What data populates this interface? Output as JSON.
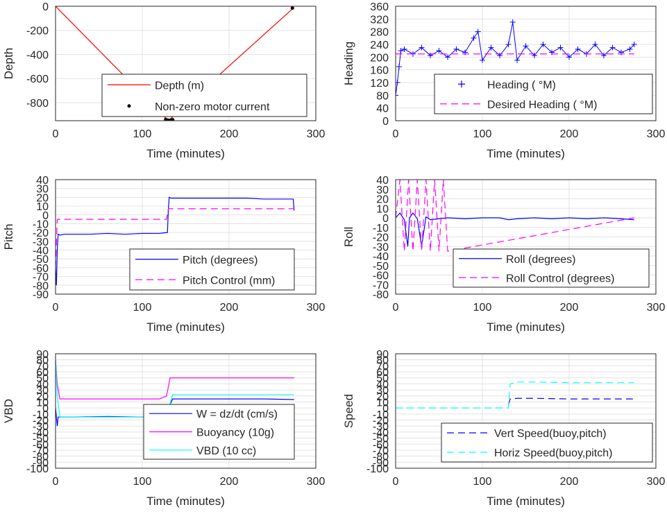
{
  "chart_data": [
    {
      "type": "line",
      "xlabel": "Time (minutes)",
      "ylabel": "Depth",
      "xlim": [
        0,
        300
      ],
      "ylim": [
        -950,
        0
      ],
      "xticks": [
        0,
        100,
        200,
        300
      ],
      "yticks": [
        0,
        -200,
        -400,
        -600,
        -800
      ],
      "grid": true,
      "legend_position": "bottom-right",
      "legend": [
        {
          "label": "Depth (m)",
          "style": "solid",
          "color": "#ff0000"
        },
        {
          "label": "Non-zero motor current",
          "style": "dot",
          "color": "#000000"
        }
      ],
      "series": [
        {
          "name": "Depth (m)",
          "color": "#ff0000",
          "style": "solid",
          "x": [
            0,
            130,
            275
          ],
          "y": [
            0,
            -950,
            -10
          ]
        },
        {
          "name": "Non-zero motor current",
          "color": "#000000",
          "style": "dot",
          "x": [
            127,
            129,
            131,
            133,
            135,
            273
          ],
          "y": [
            -940,
            -945,
            -948,
            -946,
            -942,
            -15
          ]
        }
      ]
    },
    {
      "type": "line",
      "xlabel": "Time (minutes)",
      "ylabel": "Heading",
      "xlim": [
        0,
        300
      ],
      "ylim": [
        0,
        360
      ],
      "xticks": [
        0,
        100,
        200,
        300
      ],
      "yticks": [
        0,
        40,
        80,
        120,
        160,
        200,
        240,
        280,
        320,
        360
      ],
      "grid": true,
      "legend_position": "bottom-right",
      "legend": [
        {
          "label": "Heading ( °M)",
          "style": "plus",
          "color": "#0000ff"
        },
        {
          "label": "Desired Heading ( °M)",
          "style": "dashed",
          "color": "#ff00ff"
        }
      ],
      "series": [
        {
          "name": "Heading ( °M)",
          "color": "#0000ff",
          "style": "plus",
          "x": [
            0,
            2,
            4,
            6,
            10,
            20,
            30,
            40,
            50,
            60,
            70,
            80,
            90,
            95,
            100,
            110,
            120,
            130,
            135,
            140,
            150,
            160,
            170,
            180,
            190,
            200,
            210,
            220,
            230,
            240,
            250,
            260,
            270,
            275
          ],
          "y": [
            80,
            120,
            170,
            220,
            225,
            210,
            230,
            205,
            220,
            200,
            225,
            215,
            260,
            280,
            190,
            230,
            205,
            240,
            310,
            190,
            235,
            205,
            240,
            215,
            230,
            200,
            225,
            210,
            240,
            205,
            230,
            215,
            225,
            240
          ]
        },
        {
          "name": "Desired Heading ( °M)",
          "color": "#ff00ff",
          "style": "dashed",
          "x": [
            0,
            275
          ],
          "y": [
            210,
            210
          ]
        }
      ]
    },
    {
      "type": "line",
      "xlabel": "Time (minutes)",
      "ylabel": "Pitch",
      "xlim": [
        0,
        300
      ],
      "ylim": [
        -90,
        40
      ],
      "xticks": [
        0,
        100,
        200,
        300
      ],
      "yticks": [
        40,
        30,
        20,
        10,
        0,
        -10,
        -20,
        -30,
        -40,
        -50,
        -60,
        -70,
        -80,
        -90
      ],
      "grid": true,
      "legend_position": "bottom-right",
      "legend": [
        {
          "label": "Pitch (degrees)",
          "style": "solid",
          "color": "#0000ff"
        },
        {
          "label": "Pitch Control (mm)",
          "style": "dashed",
          "color": "#ff00ff"
        }
      ],
      "series": [
        {
          "name": "Pitch (degrees)",
          "color": "#0000ff",
          "style": "solid",
          "x": [
            0,
            1,
            2,
            3,
            5,
            10,
            20,
            40,
            60,
            80,
            100,
            120,
            129,
            130,
            131,
            133,
            140,
            160,
            180,
            200,
            220,
            240,
            260,
            274,
            275
          ],
          "y": [
            -60,
            -80,
            -40,
            -22,
            -23,
            -22,
            -22,
            -22,
            -21,
            -22,
            -21,
            -21,
            -20,
            5,
            20,
            19,
            19,
            19,
            19,
            19,
            19,
            18,
            18,
            18,
            5
          ]
        },
        {
          "name": "Pitch Control (mm)",
          "color": "#ff00ff",
          "style": "dashed",
          "x": [
            0,
            2,
            5,
            128,
            130,
            275
          ],
          "y": [
            -60,
            -5,
            -5,
            -5,
            7,
            7
          ]
        }
      ]
    },
    {
      "type": "line",
      "xlabel": "Time (minutes)",
      "ylabel": "Roll",
      "xlim": [
        0,
        300
      ],
      "ylim": [
        -80,
        40
      ],
      "xticks": [
        0,
        100,
        200,
        300
      ],
      "yticks": [
        40,
        30,
        20,
        10,
        0,
        -10,
        -20,
        -30,
        -40,
        -50,
        -60,
        -70,
        -80
      ],
      "grid": true,
      "legend_position": "bottom-right",
      "legend": [
        {
          "label": "Roll (degrees)",
          "style": "solid",
          "color": "#0000ff"
        },
        {
          "label": "Roll Control (degrees)",
          "style": "dashed",
          "color": "#ff00ff"
        }
      ],
      "series": [
        {
          "name": "Roll (degrees)",
          "color": "#0000ff",
          "style": "solid",
          "x": [
            0,
            5,
            10,
            14,
            16,
            20,
            25,
            30,
            35,
            40,
            50,
            60,
            80,
            100,
            120,
            130,
            140,
            160,
            180,
            200,
            220,
            240,
            260,
            275
          ],
          "y": [
            0,
            5,
            -2,
            -30,
            0,
            5,
            -1,
            -30,
            1,
            -2,
            -1,
            0,
            -1,
            0,
            0,
            -2,
            -1,
            0,
            -1,
            0,
            -1,
            0,
            -1,
            -2
          ]
        },
        {
          "name": "Roll Control (degrees)",
          "color": "#ff00ff",
          "style": "dashed",
          "x": [
            0,
            5,
            10,
            15,
            20,
            25,
            30,
            35,
            40,
            45,
            50,
            55,
            60,
            275
          ],
          "y": [
            0,
            40,
            -35,
            40,
            -35,
            40,
            -35,
            40,
            -35,
            40,
            -35,
            40,
            -35,
            0
          ]
        }
      ]
    },
    {
      "type": "line",
      "xlabel": "Time (minutes)",
      "ylabel": "VBD",
      "xlim": [
        0,
        300
      ],
      "ylim": [
        -100,
        90
      ],
      "xticks": [
        0,
        100,
        200,
        300
      ],
      "yticks": [
        90,
        80,
        70,
        60,
        50,
        40,
        30,
        20,
        10,
        0,
        -10,
        -20,
        -30,
        -40,
        -50,
        -60,
        -70,
        -80,
        -90,
        -100
      ],
      "grid": true,
      "legend_position": "bottom-right",
      "legend": [
        {
          "label": "W = dz/dt (cm/s)",
          "style": "solid",
          "color": "#0000ff"
        },
        {
          "label": "Buoyancy (10g)",
          "style": "solid",
          "color": "#ff00ff"
        },
        {
          "label": "VBD (10 cc)",
          "style": "solid",
          "color": "#00ffff"
        }
      ],
      "series": [
        {
          "name": "W = dz/dt (cm/s)",
          "color": "#0000ff",
          "style": "solid",
          "x": [
            0,
            2,
            3,
            5,
            20,
            60,
            100,
            128,
            130,
            135,
            160,
            200,
            240,
            275
          ],
          "y": [
            0,
            -30,
            -15,
            -15,
            -15,
            -14,
            -15,
            -14,
            0,
            15,
            15,
            15,
            15,
            14
          ]
        },
        {
          "name": "Buoyancy (10g)",
          "color": "#ff00ff",
          "style": "solid",
          "x": [
            0,
            2,
            5,
            120,
            128,
            132,
            160,
            200,
            240,
            275
          ],
          "y": [
            80,
            40,
            15,
            15,
            20,
            50,
            50,
            50,
            50,
            50
          ]
        },
        {
          "name": "VBD (10 cc)",
          "color": "#00ffff",
          "style": "solid",
          "x": [
            0,
            2,
            5,
            120,
            128,
            135,
            160,
            200,
            240,
            275
          ],
          "y": [
            80,
            20,
            -15,
            -15,
            -12,
            22,
            22,
            22,
            22,
            22
          ]
        }
      ]
    },
    {
      "type": "line",
      "xlabel": "Time (minutes)",
      "ylabel": "Speed",
      "xlim": [
        0,
        300
      ],
      "ylim": [
        -100,
        90
      ],
      "xticks": [
        0,
        100,
        200,
        300
      ],
      "yticks": [
        90,
        80,
        70,
        60,
        50,
        40,
        30,
        20,
        10,
        0,
        -10,
        -20,
        -30,
        -40,
        -50,
        -60,
        -70,
        -80,
        -90,
        -100
      ],
      "grid": true,
      "legend_position": "bottom-right",
      "legend": [
        {
          "label": "Vert Speed(buoy,pitch)",
          "style": "dashed",
          "color": "#0000ff"
        },
        {
          "label": "Horiz Speed(buoy,pitch)",
          "style": "dashed",
          "color": "#00ffff"
        }
      ],
      "series": [
        {
          "name": "Vert Speed(buoy,pitch)",
          "color": "#0000ff",
          "style": "dashed",
          "x": [
            130,
            132,
            140,
            160,
            200,
            240,
            275
          ],
          "y": [
            5,
            15,
            16,
            16,
            15,
            15,
            15
          ]
        },
        {
          "name": "Horiz Speed(buoy,pitch)",
          "color": "#00ffff",
          "style": "dashed",
          "x": [
            0,
            120,
            130,
            132,
            140,
            160,
            200,
            240,
            275
          ],
          "y": [
            0,
            0,
            0,
            40,
            43,
            43,
            42,
            42,
            42
          ]
        }
      ]
    }
  ]
}
